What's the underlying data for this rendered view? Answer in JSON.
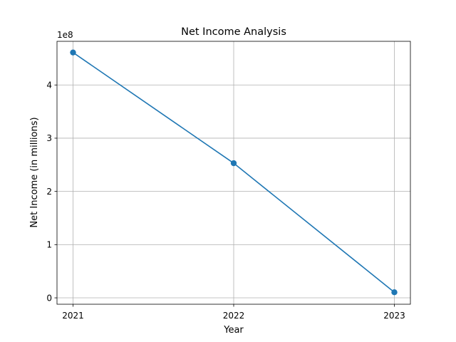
{
  "chart_data": {
    "type": "line",
    "title": "Net Income Analysis",
    "xlabel": "Year",
    "ylabel": "Net Income (in millions)",
    "y_offset_label": "1e8",
    "x": [
      "2021",
      "2022",
      "2023"
    ],
    "y_ticks": [
      "0",
      "1",
      "2",
      "3",
      "4"
    ],
    "ylim": [
      -12000000.0,
      482000000.0
    ],
    "series": [
      {
        "values": [
          461000000,
          253000000,
          10500000
        ],
        "color": "#1f77b4"
      }
    ],
    "grid": true,
    "legend": false
  }
}
